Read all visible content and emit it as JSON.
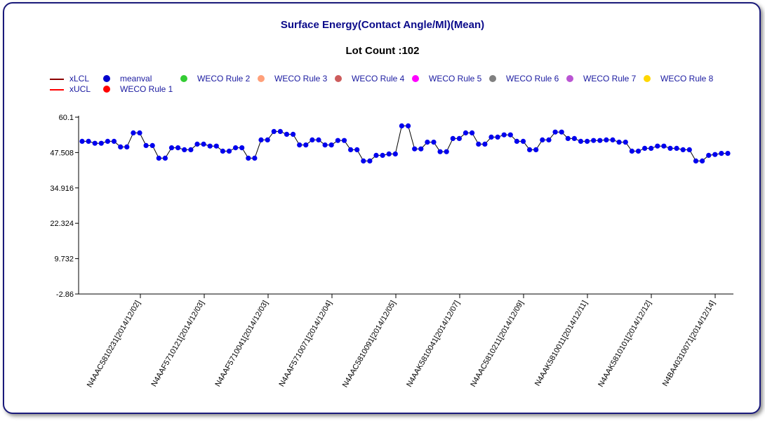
{
  "chart_data": {
    "type": "line",
    "title": "Surface Energy(Contact Angle/Ml)(Mean)",
    "subtitle": "Lot Count :102",
    "y_ticks": [
      "60.1",
      "47.508",
      "34.916",
      "22.324",
      "9.732",
      "-2.86"
    ],
    "ylim": [
      -2.86,
      60.1
    ],
    "x_ticks": [
      "N4AAC5810231[2014/12/02]",
      "N4AAF5710121[2014/12/03]",
      "N4AAF5710041[2014/12/03]",
      "N4AAF5710071[2014/12/04]",
      "N4AAC5810091[2014/12/05]",
      "N4AAK5810041[2014/12/07]",
      "N4AAC5810211[2014/12/09]",
      "N4AAK5810011[2014/12/11]",
      "N4AAK5810101[2014/12/12]",
      "N4BA40310071[2014/12/14]"
    ],
    "series": [
      {
        "name": "meanval",
        "color": "#0000ee",
        "values": [
          51.5,
          51.5,
          50.8,
          50.8,
          51.5,
          51.5,
          49.5,
          49.5,
          54.5,
          54.5,
          50.0,
          50.0,
          45.5,
          45.5,
          49.2,
          49.2,
          48.5,
          48.5,
          50.5,
          50.5,
          49.8,
          49.8,
          48.0,
          48.0,
          49.2,
          49.2,
          45.5,
          45.5,
          52.0,
          52.0,
          55.0,
          55.0,
          54.0,
          54.0,
          50.2,
          50.2,
          52.0,
          52.0,
          50.2,
          50.2,
          51.8,
          51.8,
          48.5,
          48.5,
          44.5,
          44.5,
          46.5,
          46.5,
          47.0,
          47.0,
          57.0,
          57.0,
          48.8,
          48.8,
          51.2,
          51.2,
          47.8,
          47.8,
          52.5,
          52.5,
          54.5,
          54.5,
          50.5,
          50.5,
          53.0,
          53.0,
          53.8,
          53.8,
          51.5,
          51.5,
          48.5,
          48.5,
          52.0,
          52.0,
          54.8,
          54.8,
          52.5,
          52.5,
          51.5,
          51.5,
          51.8,
          51.8,
          52.0,
          52.0,
          51.2,
          51.2,
          48.0,
          48.0,
          49.0,
          49.0,
          49.8,
          49.8,
          49.0,
          49.0,
          48.5,
          48.5,
          44.5,
          44.5,
          46.5,
          46.8,
          47.2,
          47.2
        ]
      }
    ],
    "legend": [
      {
        "label": "xLCL",
        "kind": "line",
        "color": "#8b0000"
      },
      {
        "label": "xUCL",
        "kind": "line",
        "color": "#ff0000"
      },
      {
        "label": "meanval",
        "kind": "dot",
        "color": "#0000cc"
      },
      {
        "label": "WECO Rule 1",
        "kind": "dot",
        "color": "#ff0000"
      },
      {
        "label": "WECO Rule 2",
        "kind": "dot",
        "color": "#33cc33"
      },
      {
        "label": "WECO Rule 3",
        "kind": "dot",
        "color": "#ffa07a"
      },
      {
        "label": "WECO Rule 4",
        "kind": "dot",
        "color": "#cd5c5c"
      },
      {
        "label": "WECO Rule 5",
        "kind": "dot",
        "color": "#ff00ff"
      },
      {
        "label": "WECO Rule 6",
        "kind": "dot",
        "color": "#808080"
      },
      {
        "label": "WECO Rule 7",
        "kind": "dot",
        "color": "#ba55d3"
      },
      {
        "label": "WECO Rule 8",
        "kind": "dot",
        "color": "#ffd700"
      }
    ],
    "legend_position": "top-left",
    "grid": false
  }
}
